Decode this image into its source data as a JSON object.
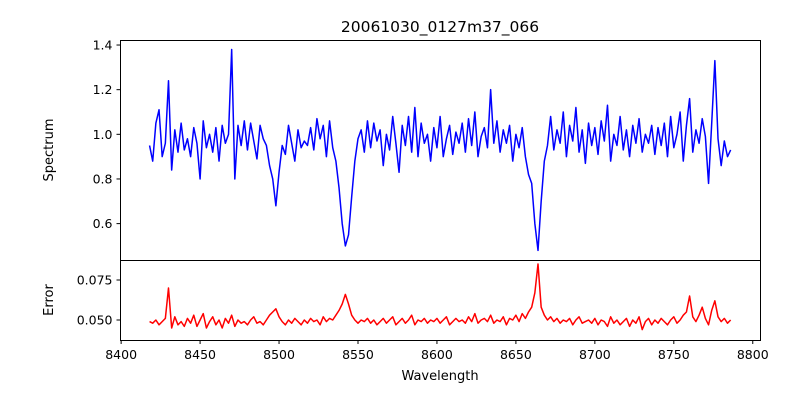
{
  "chart_data": [
    {
      "type": "line",
      "title": "20061030_0127m37_066",
      "xlabel": "",
      "ylabel": "Spectrum",
      "color": "#0000ff",
      "xlim": [
        8399.6,
        8804.9
      ],
      "ylim": [
        0.437,
        1.4225
      ],
      "xticks": [
        8400,
        8450,
        8500,
        8550,
        8600,
        8650,
        8700,
        8750,
        8800
      ],
      "yticks": [
        0.6,
        0.8,
        1.0,
        1.2,
        1.4
      ],
      "ytick_labels": [
        "0.6",
        "0.8",
        "1.0",
        "1.2",
        "1.4"
      ],
      "x_start": 8418,
      "x_step": 2,
      "values": [
        0.95,
        0.88,
        1.05,
        1.11,
        0.9,
        0.96,
        1.24,
        0.84,
        1.02,
        0.92,
        1.05,
        0.93,
        0.98,
        0.9,
        1.03,
        0.96,
        0.8,
        1.06,
        0.94,
        1.0,
        0.92,
        1.03,
        0.88,
        1.04,
        0.96,
        1.0,
        1.38,
        0.8,
        1.04,
        0.95,
        1.06,
        0.93,
        1.05,
        0.97,
        0.89,
        1.04,
        0.98,
        0.95,
        0.86,
        0.8,
        0.68,
        0.83,
        0.95,
        0.91,
        1.04,
        0.96,
        0.88,
        1.02,
        0.94,
        0.97,
        0.95,
        1.03,
        0.93,
        1.07,
        0.98,
        1.04,
        0.9,
        1.06,
        0.94,
        0.88,
        0.76,
        0.6,
        0.5,
        0.55,
        0.72,
        0.88,
        0.98,
        1.02,
        0.92,
        1.06,
        0.94,
        1.05,
        0.97,
        1.02,
        0.86,
        1.0,
        0.93,
        1.08,
        0.96,
        0.83,
        1.04,
        0.95,
        1.08,
        0.92,
        1.12,
        0.9,
        1.05,
        0.96,
        1.0,
        0.88,
        1.03,
        0.94,
        1.08,
        0.9,
        0.98,
        1.04,
        0.91,
        1.01,
        0.96,
        1.05,
        0.92,
        1.07,
        0.95,
        1.1,
        0.9,
        0.99,
        1.03,
        0.94,
        1.2,
        0.96,
        1.06,
        0.92,
        1.02,
        0.96,
        1.04,
        0.88,
        1.0,
        0.94,
        1.03,
        0.9,
        0.82,
        0.78,
        0.6,
        0.48,
        0.7,
        0.88,
        0.95,
        1.08,
        0.93,
        1.02,
        0.96,
        1.1,
        0.9,
        1.04,
        0.97,
        1.12,
        0.92,
        1.02,
        0.87,
        1.05,
        0.95,
        1.03,
        0.91,
        1.06,
        0.97,
        1.13,
        0.88,
        1.0,
        0.95,
        1.08,
        0.93,
        1.02,
        0.9,
        1.04,
        0.96,
        1.07,
        0.92,
        1.0,
        0.96,
        1.04,
        0.91,
        1.03,
        0.95,
        1.05,
        0.9,
        1.08,
        0.94,
        1.0,
        1.1,
        0.88,
        1.04,
        1.16,
        0.92,
        1.02,
        0.96,
        1.07,
        0.99,
        0.78,
        1.05,
        1.33,
        0.98,
        0.86,
        0.97,
        0.9,
        0.93
      ]
    },
    {
      "type": "line",
      "xlabel": "Wavelength",
      "ylabel": "Error",
      "color": "#ff0000",
      "xlim": [
        8399.6,
        8804.9
      ],
      "ylim": [
        0.0375,
        0.0875
      ],
      "xticks": [
        8400,
        8450,
        8500,
        8550,
        8600,
        8650,
        8700,
        8750,
        8800
      ],
      "xtick_labels": [
        "8400",
        "8450",
        "8500",
        "8550",
        "8600",
        "8650",
        "8700",
        "8750",
        "8800"
      ],
      "yticks": [
        0.05,
        0.075
      ],
      "ytick_labels": [
        "0.050",
        "0.075"
      ],
      "x_start": 8418,
      "x_step": 2,
      "values": [
        0.049,
        0.048,
        0.05,
        0.047,
        0.049,
        0.051,
        0.07,
        0.045,
        0.052,
        0.047,
        0.049,
        0.046,
        0.051,
        0.048,
        0.053,
        0.046,
        0.05,
        0.054,
        0.045,
        0.049,
        0.052,
        0.047,
        0.05,
        0.045,
        0.051,
        0.048,
        0.053,
        0.046,
        0.05,
        0.048,
        0.049,
        0.047,
        0.05,
        0.052,
        0.048,
        0.049,
        0.047,
        0.05,
        0.053,
        0.055,
        0.057,
        0.052,
        0.049,
        0.047,
        0.05,
        0.048,
        0.051,
        0.049,
        0.047,
        0.05,
        0.048,
        0.051,
        0.049,
        0.05,
        0.047,
        0.052,
        0.049,
        0.051,
        0.05,
        0.053,
        0.056,
        0.06,
        0.066,
        0.06,
        0.053,
        0.05,
        0.048,
        0.05,
        0.049,
        0.051,
        0.048,
        0.05,
        0.047,
        0.049,
        0.051,
        0.048,
        0.05,
        0.052,
        0.047,
        0.049,
        0.051,
        0.048,
        0.05,
        0.053,
        0.047,
        0.05,
        0.049,
        0.051,
        0.048,
        0.05,
        0.049,
        0.051,
        0.048,
        0.05,
        0.052,
        0.047,
        0.049,
        0.051,
        0.049,
        0.05,
        0.048,
        0.052,
        0.049,
        0.054,
        0.048,
        0.05,
        0.051,
        0.049,
        0.053,
        0.048,
        0.05,
        0.049,
        0.052,
        0.047,
        0.051,
        0.05,
        0.053,
        0.049,
        0.054,
        0.051,
        0.055,
        0.058,
        0.067,
        0.085,
        0.058,
        0.053,
        0.05,
        0.052,
        0.049,
        0.051,
        0.048,
        0.05,
        0.049,
        0.051,
        0.047,
        0.05,
        0.052,
        0.048,
        0.049,
        0.05,
        0.048,
        0.051,
        0.047,
        0.05,
        0.049,
        0.046,
        0.052,
        0.048,
        0.05,
        0.047,
        0.049,
        0.051,
        0.046,
        0.05,
        0.048,
        0.052,
        0.044,
        0.049,
        0.051,
        0.047,
        0.05,
        0.048,
        0.051,
        0.049,
        0.047,
        0.05,
        0.052,
        0.048,
        0.05,
        0.053,
        0.055,
        0.065,
        0.052,
        0.049,
        0.053,
        0.058,
        0.051,
        0.047,
        0.056,
        0.062,
        0.052,
        0.049,
        0.051,
        0.048,
        0.05
      ]
    }
  ]
}
